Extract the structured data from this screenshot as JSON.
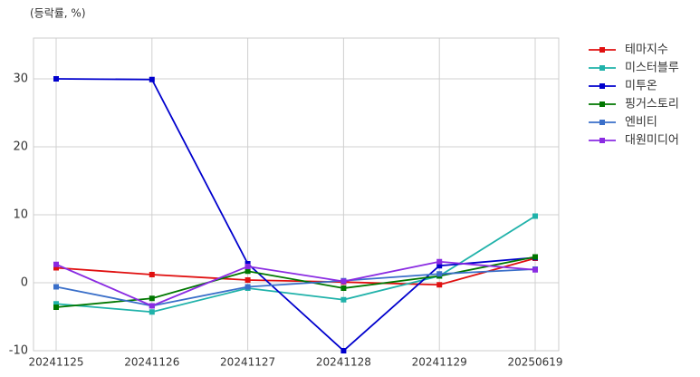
{
  "chart_data": {
    "type": "line",
    "title": "(등락률, %)",
    "categories": [
      "20241125",
      "20241126",
      "20241127",
      "20241128",
      "20241129",
      "20250619"
    ],
    "ylim": [
      -10,
      36
    ],
    "yticks": [
      -10,
      0,
      10,
      20,
      30
    ],
    "grid": true,
    "legend": "outside-right",
    "series": [
      {
        "name": "테마지수",
        "color": "#e01010",
        "values": [
          2.2,
          1.2,
          0.4,
          0.1,
          -0.3,
          3.6
        ]
      },
      {
        "name": "미스터블루",
        "color": "#20b2aa",
        "values": [
          -3.1,
          -4.3,
          -0.8,
          -2.5,
          1.0,
          9.8
        ]
      },
      {
        "name": "미투온",
        "color": "#0000cd",
        "values": [
          30.0,
          29.9,
          2.8,
          -10.0,
          2.5,
          3.7
        ]
      },
      {
        "name": "핑거스토리",
        "color": "#007700",
        "values": [
          -3.6,
          -2.3,
          1.7,
          -0.8,
          1.0,
          3.8
        ]
      },
      {
        "name": "엔비티",
        "color": "#3a6fc9",
        "values": [
          -0.6,
          -3.4,
          -0.6,
          0.3,
          1.3,
          2.0
        ]
      },
      {
        "name": "대원미디어",
        "color": "#8a2be2",
        "values": [
          2.7,
          -3.4,
          2.4,
          0.2,
          3.1,
          1.9
        ]
      }
    ]
  }
}
